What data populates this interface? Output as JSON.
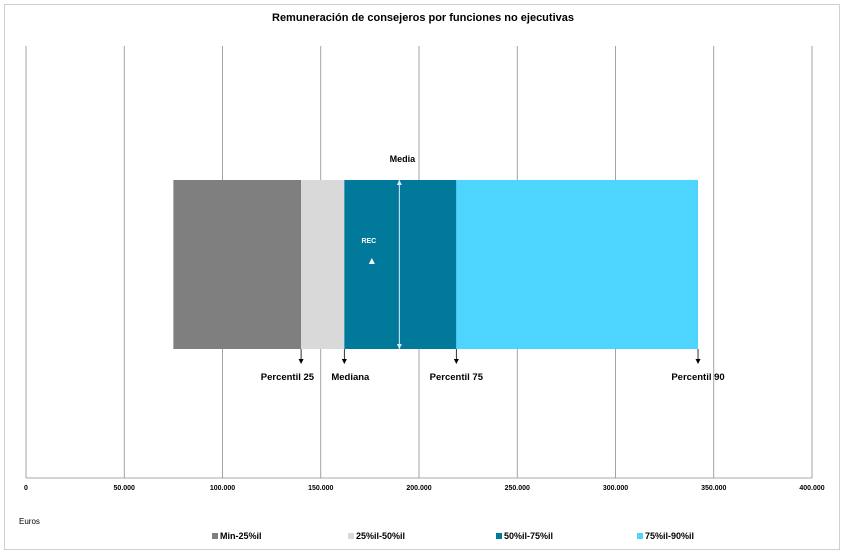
{
  "chart_data": {
    "type": "bar",
    "title": "Remuneración de consejeros por funciones no ejecutivas",
    "unit_label": "Euros",
    "orientation": "horizontal-floating-stacked",
    "xlim": [
      0,
      400000
    ],
    "x_ticks": [
      0,
      50000,
      100000,
      150000,
      200000,
      250000,
      300000,
      350000,
      400000
    ],
    "x_tick_labels": [
      "0",
      "50.000",
      "100.000",
      "150.000",
      "200.000",
      "250.000",
      "300.000",
      "350.000",
      "400.000"
    ],
    "grid": true,
    "legend_position": "bottom",
    "segments": [
      {
        "name": "Min-25%il",
        "start": 75000,
        "end": 140000,
        "color": "#7f7f7f"
      },
      {
        "name": "25%il-50%il",
        "start": 140000,
        "end": 162000,
        "color": "#d9d9d9"
      },
      {
        "name": "50%il-75%il",
        "start": 162000,
        "end": 219000,
        "color": "#00799b"
      },
      {
        "name": "75%il-90%il",
        "start": 219000,
        "end": 342000,
        "color": "#4dd5ff"
      }
    ],
    "markers": [
      {
        "label": "Percentil 25",
        "value": 140000,
        "align": "end"
      },
      {
        "label": "Mediana",
        "value": 162000,
        "align": "start"
      },
      {
        "label": "Percentil 75",
        "value": 219000,
        "align": "middle"
      },
      {
        "label": "Percentil 90",
        "value": 342000,
        "align": "middle"
      }
    ],
    "media": {
      "label": "Media",
      "value": 190000
    },
    "rec": {
      "label": "REC",
      "value": 176000
    }
  }
}
